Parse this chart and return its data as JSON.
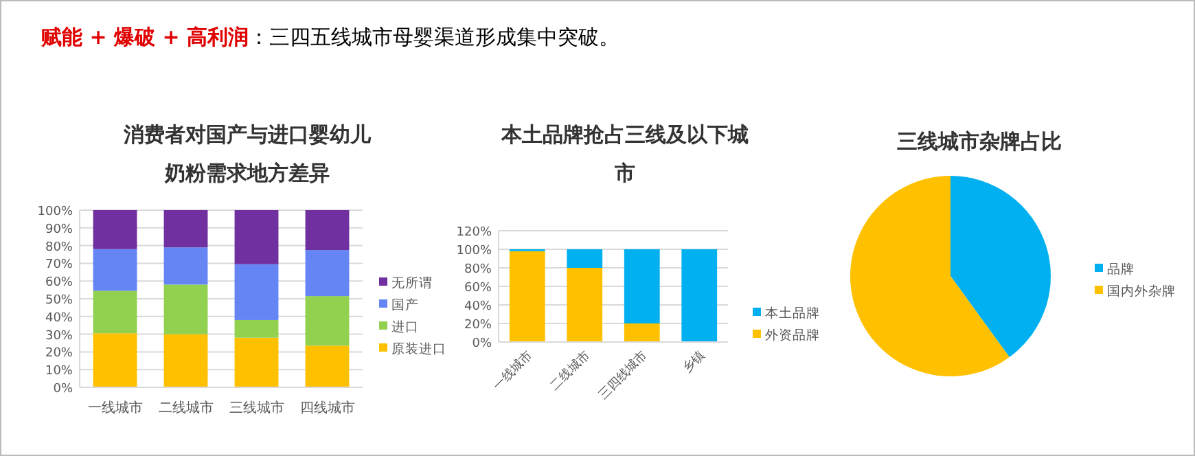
{
  "chart_data": [
    {
      "type": "other",
      "annotations": [
        "赋能 + 爆破 + 高利润",
        "：三四五线城市母婴渠道形成集中突破。"
      ]
    },
    {
      "type": "bar",
      "stacked": true,
      "title": "消费者对国产与进口婴幼儿奶粉需求地方差异",
      "categories": [
        "一线城市",
        "二线城市",
        "三线城市",
        "四线城市"
      ],
      "series": [
        {
          "name": "原装进口",
          "color": "#ffc000",
          "values": [
            30.5,
            30,
            28,
            23.5
          ]
        },
        {
          "name": "进口",
          "color": "#92d050",
          "values": [
            24,
            28,
            10,
            28
          ]
        },
        {
          "name": "国产",
          "color": "#6585f5",
          "values": [
            23.5,
            21,
            31.5,
            26
          ]
        },
        {
          "name": "无所谓",
          "color": "#7030a0",
          "values": [
            22,
            21,
            30.5,
            22.5
          ]
        }
      ],
      "ylim": [
        0,
        100
      ],
      "yticks": [
        {
          "value": 0,
          "label": "0%"
        },
        {
          "value": 10,
          "label": "10%"
        },
        {
          "value": 20,
          "label": "20%"
        },
        {
          "value": 30,
          "label": "30%"
        },
        {
          "value": 40,
          "label": "40%"
        },
        {
          "value": 50,
          "label": "50%"
        },
        {
          "value": 60,
          "label": "60%"
        },
        {
          "value": 70,
          "label": "70%"
        },
        {
          "value": 80,
          "label": "80%"
        },
        {
          "value": 90,
          "label": "90%"
        },
        {
          "value": 100,
          "label": "100%"
        }
      ],
      "grid": "y",
      "legend": "right"
    },
    {
      "type": "bar",
      "stacked": true,
      "title": "本土品牌抢占三线及以下城市",
      "categories": [
        "一线城市",
        "二线城市",
        "三四线城市",
        "乡镇"
      ],
      "series": [
        {
          "name": "外资品牌",
          "color": "#ffc000",
          "values": [
            98,
            80,
            20,
            0
          ]
        },
        {
          "name": "本土品牌",
          "color": "#00b0f0",
          "values": [
            2,
            20,
            80,
            100
          ]
        }
      ],
      "ylim": [
        0,
        120
      ],
      "yticks": [
        {
          "value": 0,
          "label": "0%"
        },
        {
          "value": 20,
          "label": "20%"
        },
        {
          "value": 40,
          "label": "40%"
        },
        {
          "value": 60,
          "label": "60%"
        },
        {
          "value": 80,
          "label": "80%"
        },
        {
          "value": 100,
          "label": "100%"
        },
        {
          "value": 120,
          "label": "120%"
        }
      ],
      "grid": "y",
      "legend": "right"
    },
    {
      "type": "pie",
      "title": "三线城市杂牌占比",
      "categories": [
        "品牌",
        "国内外杂牌"
      ],
      "values": [
        40,
        60
      ],
      "colors": [
        "#00b0f0",
        "#ffc000"
      ],
      "legend": "right"
    }
  ]
}
